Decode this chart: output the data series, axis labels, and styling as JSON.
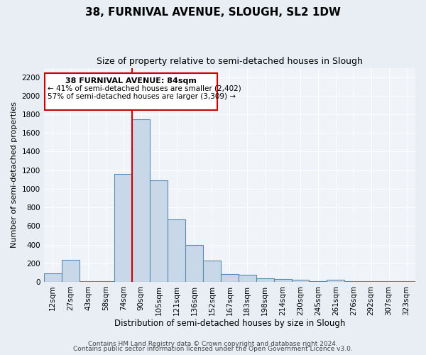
{
  "title": "38, FURNIVAL AVENUE, SLOUGH, SL2 1DW",
  "subtitle": "Size of property relative to semi-detached houses in Slough",
  "xlabel": "Distribution of semi-detached houses by size in Slough",
  "ylabel": "Number of semi-detached properties",
  "categories": [
    "12sqm",
    "27sqm",
    "43sqm",
    "58sqm",
    "74sqm",
    "90sqm",
    "105sqm",
    "121sqm",
    "136sqm",
    "152sqm",
    "167sqm",
    "183sqm",
    "198sqm",
    "214sqm",
    "230sqm",
    "245sqm",
    "261sqm",
    "276sqm",
    "292sqm",
    "307sqm",
    "323sqm"
  ],
  "values": [
    90,
    240,
    5,
    5,
    1160,
    1750,
    1090,
    670,
    400,
    230,
    85,
    75,
    35,
    30,
    20,
    5,
    20,
    5,
    5,
    5,
    5
  ],
  "bar_color": "#c8d8e8",
  "bar_edge_color": "#5a8ab0",
  "bar_linewidth": 0.8,
  "vline_x_idx": 4.5,
  "vline_color": "#cc0000",
  "annotation_title": "38 FURNIVAL AVENUE: 84sqm",
  "annotation_line1": "← 41% of semi-detached houses are smaller (2,402)",
  "annotation_line2": "57% of semi-detached houses are larger (3,309) →",
  "annotation_box_color": "#ffffff",
  "annotation_box_edge": "#cc0000",
  "ylim": [
    0,
    2300
  ],
  "yticks": [
    0,
    200,
    400,
    600,
    800,
    1000,
    1200,
    1400,
    1600,
    1800,
    2000,
    2200
  ],
  "footer1": "Contains HM Land Registry data © Crown copyright and database right 2024.",
  "footer2": "Contains public sector information licensed under the Open Government Licence v3.0.",
  "bg_color": "#e8eef4",
  "plot_bg_color": "#f0f4f8",
  "title_fontsize": 11,
  "subtitle_fontsize": 9,
  "tick_fontsize": 7.5,
  "ylabel_fontsize": 8,
  "xlabel_fontsize": 8.5,
  "footer_fontsize": 6.5
}
